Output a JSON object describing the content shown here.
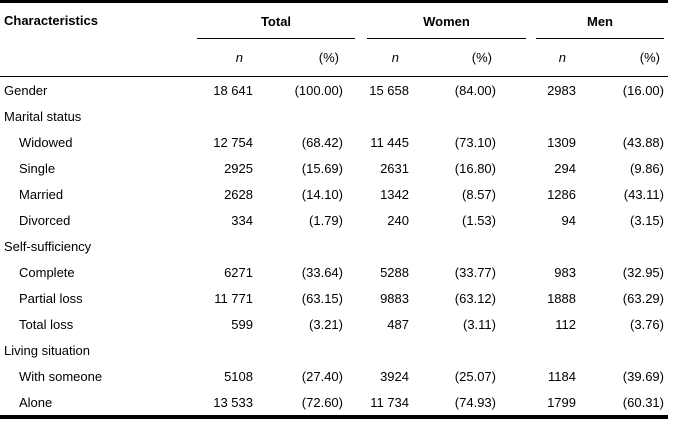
{
  "table": {
    "characteristics_header": "Characteristics",
    "groups": [
      {
        "label": "Total"
      },
      {
        "label": "Women"
      },
      {
        "label": "Men"
      }
    ],
    "subheaders": {
      "n": "n",
      "pct": "(%)"
    },
    "rows": [
      {
        "label": "Gender",
        "indent": false,
        "values": [
          "18 641",
          "(100.00)",
          "15 658",
          "(84.00)",
          "2983",
          "(16.00)"
        ]
      },
      {
        "label": "Marital status",
        "indent": false,
        "values": [
          "",
          "",
          "",
          "",
          "",
          ""
        ]
      },
      {
        "label": "Widowed",
        "indent": true,
        "values": [
          "12 754",
          "(68.42)",
          "11 445",
          "(73.10)",
          "1309",
          "(43.88)"
        ]
      },
      {
        "label": "Single",
        "indent": true,
        "values": [
          "2925",
          "(15.69)",
          "2631",
          "(16.80)",
          "294",
          "(9.86)"
        ]
      },
      {
        "label": "Married",
        "indent": true,
        "values": [
          "2628",
          "(14.10)",
          "1342",
          "(8.57)",
          "1286",
          "(43.11)"
        ]
      },
      {
        "label": "Divorced",
        "indent": true,
        "values": [
          "334",
          "(1.79)",
          "240",
          "(1.53)",
          "94",
          "(3.15)"
        ]
      },
      {
        "label": "Self-sufficiency",
        "indent": false,
        "values": [
          "",
          "",
          "",
          "",
          "",
          ""
        ]
      },
      {
        "label": "Complete",
        "indent": true,
        "values": [
          "6271",
          "(33.64)",
          "5288",
          "(33.77)",
          "983",
          "(32.95)"
        ]
      },
      {
        "label": "Partial loss",
        "indent": true,
        "values": [
          "11 771",
          "(63.15)",
          "9883",
          "(63.12)",
          "1888",
          "(63.29)"
        ]
      },
      {
        "label": "Total loss",
        "indent": true,
        "values": [
          "599",
          "(3.21)",
          "487",
          "(3.11)",
          "112",
          "(3.76)"
        ]
      },
      {
        "label": "Living situation",
        "indent": false,
        "values": [
          "",
          "",
          "",
          "",
          "",
          ""
        ]
      },
      {
        "label": "With someone",
        "indent": true,
        "values": [
          "5108",
          "(27.40)",
          "3924",
          "(25.07)",
          "1184",
          "(39.69)"
        ]
      },
      {
        "label": "Alone",
        "indent": true,
        "values": [
          "13 533",
          "(72.60)",
          "11 734",
          "(74.93)",
          "1799",
          "(60.31)"
        ]
      }
    ]
  },
  "colors": {
    "text": "#000000",
    "rule": "#000000",
    "background": "#ffffff"
  }
}
